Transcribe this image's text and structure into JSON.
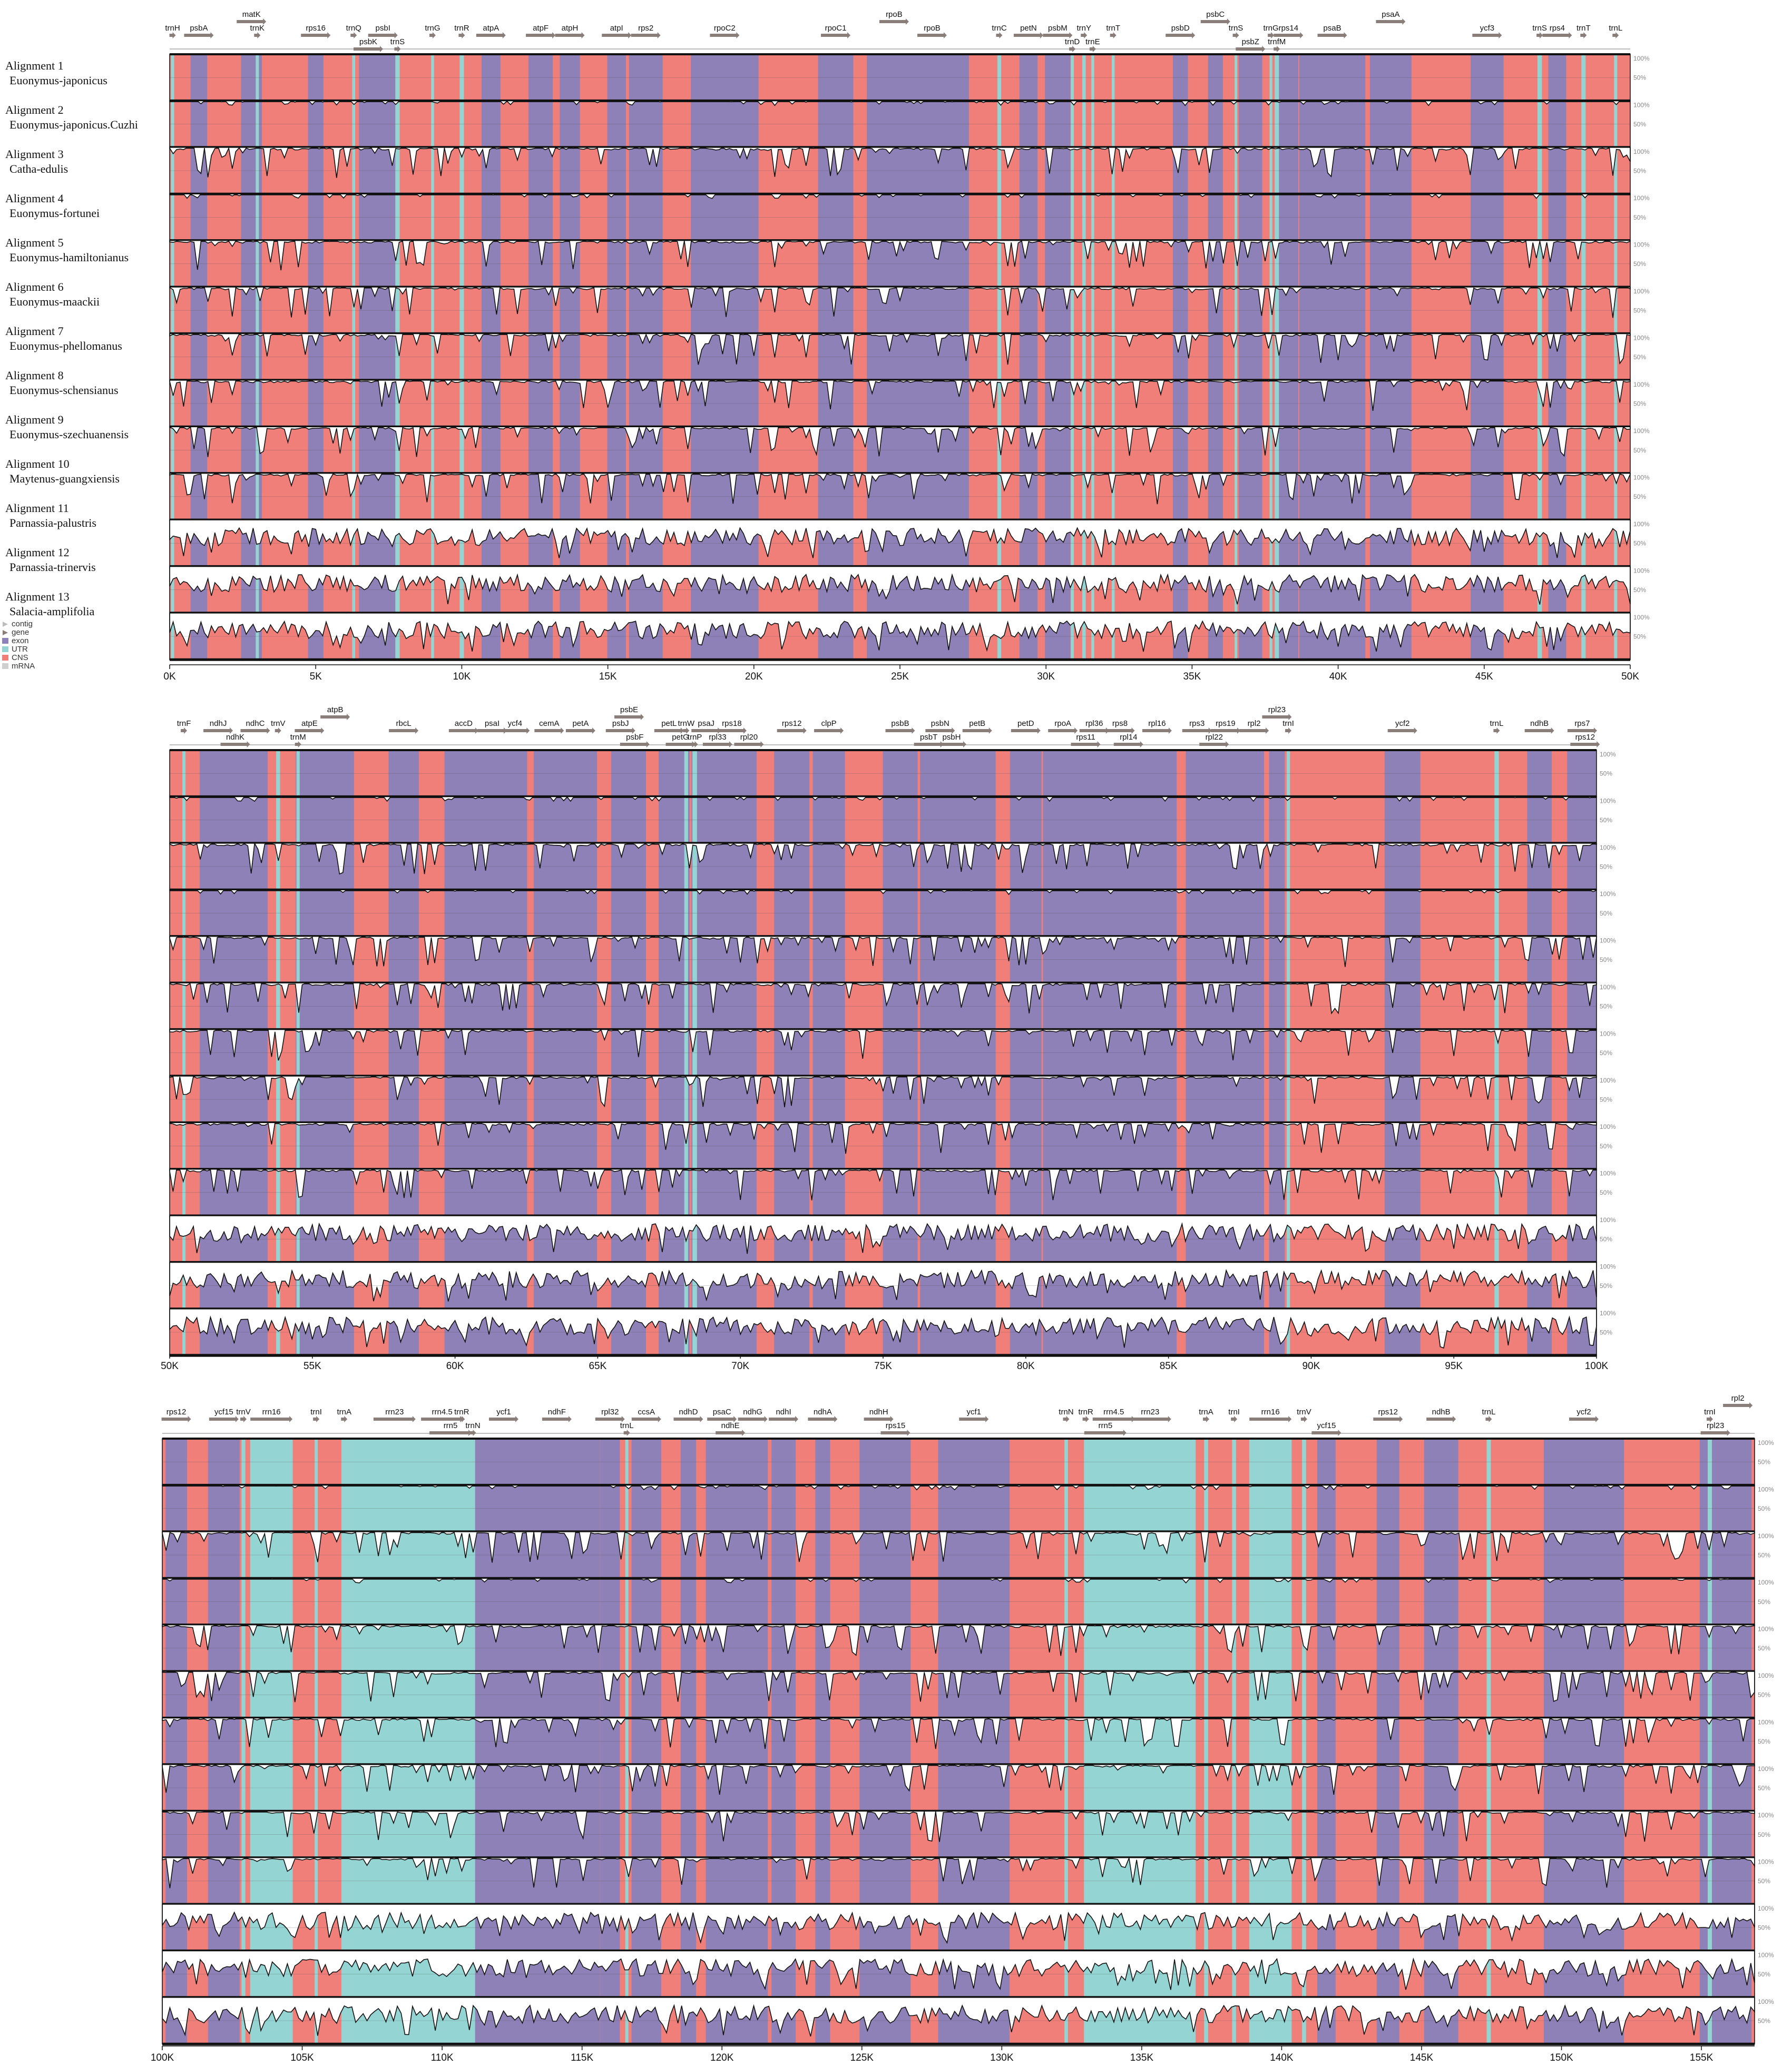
{
  "chart_data": {
    "type": "area",
    "title": "",
    "xlabel": "",
    "ylabel": "",
    "y_ticks": [
      "100%",
      "50%"
    ],
    "legend": {
      "placement": "left",
      "entries": [
        {
          "name": "contig",
          "color": "#bdbdbd",
          "marker": "arrow"
        },
        {
          "name": "gene",
          "color": "#8a7e7b",
          "marker": "arrow"
        },
        {
          "name": "exon",
          "color": "#8e81b8",
          "marker": "box"
        },
        {
          "name": "UTR",
          "color": "#94d4d2",
          "marker": "box"
        },
        {
          "name": "CNS",
          "color": "#f07f7a",
          "marker": "box"
        },
        {
          "name": "mRNA",
          "color": "#cfcfcf",
          "marker": "box"
        }
      ]
    },
    "alignments": [
      {
        "label": "Alignment 1",
        "species": "Euonymus-japonicus"
      },
      {
        "label": "Alignment 2",
        "species": "Euonymus-japonicus.Cuzhi"
      },
      {
        "label": "Alignment 3",
        "species": "Catha-edulis"
      },
      {
        "label": "Alignment 4",
        "species": "Euonymus-fortunei"
      },
      {
        "label": "Alignment 5",
        "species": "Euonymus-hamiltonianus"
      },
      {
        "label": "Alignment 6",
        "species": "Euonymus-maackii"
      },
      {
        "label": "Alignment 7",
        "species": "Euonymus-phellomanus"
      },
      {
        "label": "Alignment 8",
        "species": "Euonymus-schensianus"
      },
      {
        "label": "Alignment 9",
        "species": "Euonymus-szechuanensis"
      },
      {
        "label": "Alignment 10",
        "species": "Maytenus-guangxiensis"
      },
      {
        "label": "Alignment 11",
        "species": "Parnassia-palustris"
      },
      {
        "label": "Alignment 12",
        "species": "Parnassia-trinervis"
      },
      {
        "label": "Alignment 13",
        "species": "Salacia-amplifolia"
      }
    ],
    "panels": [
      {
        "xlim": [
          0,
          50000
        ],
        "tick_labels": [
          "0K",
          "5K",
          "10K",
          "15K",
          "20K",
          "25K",
          "30K",
          "35K",
          "40K",
          "45K",
          "50K"
        ],
        "genes": [
          {
            "name": "trnH",
            "x": 100,
            "lvl": 1,
            "t": "u"
          },
          {
            "name": "psbA",
            "x": 1000,
            "lvl": 1,
            "t": "e"
          },
          {
            "name": "matK",
            "x": 2800,
            "lvl": 0,
            "t": "e"
          },
          {
            "name": "trnK",
            "x": 3000,
            "lvl": 1,
            "t": "u"
          },
          {
            "name": "rps16",
            "x": 5000,
            "lvl": 1,
            "t": "e"
          },
          {
            "name": "trnQ",
            "x": 6300,
            "lvl": 1,
            "t": "u"
          },
          {
            "name": "psbK",
            "x": 6800,
            "lvl": 2,
            "t": "e"
          },
          {
            "name": "psbI",
            "x": 7300,
            "lvl": 1,
            "t": "e"
          },
          {
            "name": "trnS",
            "x": 7800,
            "lvl": 2,
            "t": "u"
          },
          {
            "name": "trnG",
            "x": 9000,
            "lvl": 1,
            "t": "u"
          },
          {
            "name": "trnR",
            "x": 10000,
            "lvl": 1,
            "t": "u"
          },
          {
            "name": "atpA",
            "x": 11000,
            "lvl": 1,
            "t": "e"
          },
          {
            "name": "atpF",
            "x": 12700,
            "lvl": 1,
            "t": "e"
          },
          {
            "name": "atpH",
            "x": 13700,
            "lvl": 1,
            "t": "e"
          },
          {
            "name": "atpI",
            "x": 15300,
            "lvl": 1,
            "t": "e"
          },
          {
            "name": "rps2",
            "x": 16300,
            "lvl": 1,
            "t": "e"
          },
          {
            "name": "rpoC2",
            "x": 19000,
            "lvl": 1,
            "t": "e"
          },
          {
            "name": "rpoC1",
            "x": 22800,
            "lvl": 1,
            "t": "e"
          },
          {
            "name": "rpoB",
            "x": 24800,
            "lvl": 0,
            "t": "e"
          },
          {
            "name": "rpoB",
            "x": 26100,
            "lvl": 1,
            "t": "e"
          },
          {
            "name": "trnC",
            "x": 28400,
            "lvl": 1,
            "t": "u"
          },
          {
            "name": "petN",
            "x": 29400,
            "lvl": 1,
            "t": "e"
          },
          {
            "name": "psbM",
            "x": 30400,
            "lvl": 1,
            "t": "e"
          },
          {
            "name": "trnD",
            "x": 30900,
            "lvl": 2,
            "t": "u"
          },
          {
            "name": "trnY",
            "x": 31300,
            "lvl": 1,
            "t": "u"
          },
          {
            "name": "trnE",
            "x": 31600,
            "lvl": 2,
            "t": "u"
          },
          {
            "name": "trnT",
            "x": 32300,
            "lvl": 1,
            "t": "u"
          },
          {
            "name": "psbD",
            "x": 34600,
            "lvl": 1,
            "t": "e"
          },
          {
            "name": "psbC",
            "x": 35800,
            "lvl": 0,
            "t": "e"
          },
          {
            "name": "trnS",
            "x": 36500,
            "lvl": 1,
            "t": "u"
          },
          {
            "name": "psbZ",
            "x": 37000,
            "lvl": 2,
            "t": "e"
          },
          {
            "name": "trnG",
            "x": 37700,
            "lvl": 1,
            "t": "u"
          },
          {
            "name": "trnfM",
            "x": 37900,
            "lvl": 2,
            "t": "u"
          },
          {
            "name": "rps14",
            "x": 38300,
            "lvl": 1,
            "t": "e"
          },
          {
            "name": "psaB",
            "x": 39800,
            "lvl": 1,
            "t": "e"
          },
          {
            "name": "psaA",
            "x": 41800,
            "lvl": 0,
            "t": "e"
          },
          {
            "name": "ycf3",
            "x": 45100,
            "lvl": 1,
            "t": "e"
          },
          {
            "name": "trnS",
            "x": 46900,
            "lvl": 1,
            "t": "u"
          },
          {
            "name": "rps4",
            "x": 47500,
            "lvl": 1,
            "t": "e"
          },
          {
            "name": "trnT",
            "x": 48400,
            "lvl": 1,
            "t": "u"
          },
          {
            "name": "trnL",
            "x": 49500,
            "lvl": 1,
            "t": "u"
          }
        ]
      },
      {
        "xlim": [
          50000,
          100000
        ],
        "tick_labels": [
          "50K",
          "55K",
          "60K",
          "65K",
          "70K",
          "75K",
          "80K",
          "85K",
          "90K",
          "95K",
          "100K"
        ],
        "genes": [
          {
            "name": "trnF",
            "x": 50500,
            "lvl": 1,
            "t": "u"
          },
          {
            "name": "ndhJ",
            "x": 51700,
            "lvl": 1,
            "t": "e"
          },
          {
            "name": "ndhK",
            "x": 52300,
            "lvl": 2,
            "t": "e"
          },
          {
            "name": "ndhC",
            "x": 53000,
            "lvl": 1,
            "t": "e"
          },
          {
            "name": "trnV",
            "x": 53800,
            "lvl": 1,
            "t": "u"
          },
          {
            "name": "trnM",
            "x": 54500,
            "lvl": 2,
            "t": "u"
          },
          {
            "name": "atpE",
            "x": 54900,
            "lvl": 1,
            "t": "e"
          },
          {
            "name": "atpB",
            "x": 55800,
            "lvl": 0,
            "t": "e"
          },
          {
            "name": "rbcL",
            "x": 58200,
            "lvl": 1,
            "t": "e"
          },
          {
            "name": "accD",
            "x": 60300,
            "lvl": 1,
            "t": "e"
          },
          {
            "name": "psaI",
            "x": 61300,
            "lvl": 1,
            "t": "e"
          },
          {
            "name": "ycf4",
            "x": 62100,
            "lvl": 1,
            "t": "e"
          },
          {
            "name": "cemA",
            "x": 63300,
            "lvl": 1,
            "t": "e"
          },
          {
            "name": "petA",
            "x": 64400,
            "lvl": 1,
            "t": "e"
          },
          {
            "name": "psbE",
            "x": 66100,
            "lvl": 0,
            "t": "e"
          },
          {
            "name": "psbJ",
            "x": 65800,
            "lvl": 1,
            "t": "e"
          },
          {
            "name": "psbF",
            "x": 66300,
            "lvl": 2,
            "t": "e"
          },
          {
            "name": "petL",
            "x": 67500,
            "lvl": 1,
            "t": "e"
          },
          {
            "name": "trnW",
            "x": 68100,
            "lvl": 1,
            "t": "u"
          },
          {
            "name": "petG",
            "x": 67900,
            "lvl": 2,
            "t": "e"
          },
          {
            "name": "trnP",
            "x": 68400,
            "lvl": 2,
            "t": "u"
          },
          {
            "name": "psaJ",
            "x": 68800,
            "lvl": 1,
            "t": "e"
          },
          {
            "name": "rpl33",
            "x": 69200,
            "lvl": 2,
            "t": "e"
          },
          {
            "name": "rps18",
            "x": 69700,
            "lvl": 1,
            "t": "e"
          },
          {
            "name": "rpl20",
            "x": 70300,
            "lvl": 2,
            "t": "e"
          },
          {
            "name": "rps12",
            "x": 71800,
            "lvl": 1,
            "t": "e"
          },
          {
            "name": "clpP",
            "x": 73100,
            "lvl": 1,
            "t": "e"
          },
          {
            "name": "psbB",
            "x": 75600,
            "lvl": 1,
            "t": "e"
          },
          {
            "name": "psbT",
            "x": 76600,
            "lvl": 2,
            "t": "e"
          },
          {
            "name": "psbN",
            "x": 77000,
            "lvl": 1,
            "t": "e"
          },
          {
            "name": "psbH",
            "x": 77400,
            "lvl": 2,
            "t": "e"
          },
          {
            "name": "petB",
            "x": 78300,
            "lvl": 1,
            "t": "e"
          },
          {
            "name": "petD",
            "x": 80000,
            "lvl": 1,
            "t": "e"
          },
          {
            "name": "rpoA",
            "x": 81300,
            "lvl": 1,
            "t": "e"
          },
          {
            "name": "rps11",
            "x": 82100,
            "lvl": 2,
            "t": "e"
          },
          {
            "name": "rpl36",
            "x": 82400,
            "lvl": 1,
            "t": "e"
          },
          {
            "name": "rps8",
            "x": 83300,
            "lvl": 1,
            "t": "e"
          },
          {
            "name": "rpl14",
            "x": 83600,
            "lvl": 2,
            "t": "e"
          },
          {
            "name": "rpl16",
            "x": 84600,
            "lvl": 1,
            "t": "e"
          },
          {
            "name": "rps3",
            "x": 86000,
            "lvl": 1,
            "t": "e"
          },
          {
            "name": "rpl22",
            "x": 86600,
            "lvl": 2,
            "t": "e"
          },
          {
            "name": "rps19",
            "x": 87000,
            "lvl": 1,
            "t": "e"
          },
          {
            "name": "rpl2",
            "x": 88000,
            "lvl": 1,
            "t": "e"
          },
          {
            "name": "rpl23",
            "x": 88800,
            "lvl": 0,
            "t": "e"
          },
          {
            "name": "trnI",
            "x": 89200,
            "lvl": 1,
            "t": "u"
          },
          {
            "name": "ycf2",
            "x": 93200,
            "lvl": 1,
            "t": "e"
          },
          {
            "name": "trnL",
            "x": 96500,
            "lvl": 1,
            "t": "u"
          },
          {
            "name": "ndhB",
            "x": 98000,
            "lvl": 1,
            "t": "e"
          },
          {
            "name": "rps7",
            "x": 99500,
            "lvl": 1,
            "t": "e"
          },
          {
            "name": "rps12",
            "x": 99600,
            "lvl": 2,
            "t": "e"
          }
        ]
      },
      {
        "xlim": [
          100000,
          156900
        ],
        "tick_labels": [
          "100K",
          "105K",
          "110K",
          "115K",
          "120K",
          "125K",
          "130K",
          "135K",
          "140K",
          "145K",
          "150K",
          "155K"
        ],
        "genes": [
          {
            "name": "rps12",
            "x": 100500,
            "lvl": 1,
            "t": "e"
          },
          {
            "name": "ycf15",
            "x": 102200,
            "lvl": 1,
            "t": "e"
          },
          {
            "name": "trnV",
            "x": 102900,
            "lvl": 1,
            "t": "u"
          },
          {
            "name": "rrn16",
            "x": 103900,
            "lvl": 1,
            "t": "r"
          },
          {
            "name": "trnI",
            "x": 105500,
            "lvl": 1,
            "t": "u"
          },
          {
            "name": "trnA",
            "x": 106500,
            "lvl": 1,
            "t": "u"
          },
          {
            "name": "rrn23",
            "x": 108300,
            "lvl": 1,
            "t": "r"
          },
          {
            "name": "rrn4.5",
            "x": 110000,
            "lvl": 1,
            "t": "r"
          },
          {
            "name": "rrn5",
            "x": 110300,
            "lvl": 2,
            "t": "r"
          },
          {
            "name": "trnR",
            "x": 110700,
            "lvl": 1,
            "t": "u"
          },
          {
            "name": "trnN",
            "x": 111100,
            "lvl": 2,
            "t": "u"
          },
          {
            "name": "ycf1",
            "x": 112200,
            "lvl": 1,
            "t": "e"
          },
          {
            "name": "ndhF",
            "x": 114100,
            "lvl": 1,
            "t": "e"
          },
          {
            "name": "rpl32",
            "x": 116000,
            "lvl": 1,
            "t": "e"
          },
          {
            "name": "trnL",
            "x": 116600,
            "lvl": 2,
            "t": "u"
          },
          {
            "name": "ccsA",
            "x": 117300,
            "lvl": 1,
            "t": "e"
          },
          {
            "name": "ndhD",
            "x": 118800,
            "lvl": 1,
            "t": "e"
          },
          {
            "name": "psaC",
            "x": 120000,
            "lvl": 1,
            "t": "e"
          },
          {
            "name": "ndhE",
            "x": 120300,
            "lvl": 2,
            "t": "e"
          },
          {
            "name": "ndhG",
            "x": 121100,
            "lvl": 1,
            "t": "e"
          },
          {
            "name": "ndhI",
            "x": 122200,
            "lvl": 1,
            "t": "e"
          },
          {
            "name": "ndhA",
            "x": 123600,
            "lvl": 1,
            "t": "e"
          },
          {
            "name": "ndhH",
            "x": 125600,
            "lvl": 1,
            "t": "e"
          },
          {
            "name": "rps15",
            "x": 126200,
            "lvl": 2,
            "t": "e"
          },
          {
            "name": "ycf1",
            "x": 129000,
            "lvl": 1,
            "t": "e"
          },
          {
            "name": "trnN",
            "x": 132300,
            "lvl": 1,
            "t": "u"
          },
          {
            "name": "trnR",
            "x": 133000,
            "lvl": 1,
            "t": "u"
          },
          {
            "name": "rrn5",
            "x": 133700,
            "lvl": 2,
            "t": "r"
          },
          {
            "name": "rrn4.5",
            "x": 134000,
            "lvl": 1,
            "t": "r"
          },
          {
            "name": "rrn23",
            "x": 135300,
            "lvl": 1,
            "t": "r"
          },
          {
            "name": "trnA",
            "x": 137300,
            "lvl": 1,
            "t": "u"
          },
          {
            "name": "trnI",
            "x": 138300,
            "lvl": 1,
            "t": "u"
          },
          {
            "name": "rrn16",
            "x": 139600,
            "lvl": 1,
            "t": "r"
          },
          {
            "name": "trnV",
            "x": 140800,
            "lvl": 1,
            "t": "u"
          },
          {
            "name": "ycf15",
            "x": 141600,
            "lvl": 2,
            "t": "e"
          },
          {
            "name": "rps12",
            "x": 143800,
            "lvl": 1,
            "t": "e"
          },
          {
            "name": "ndhB",
            "x": 145700,
            "lvl": 1,
            "t": "e"
          },
          {
            "name": "trnL",
            "x": 147400,
            "lvl": 1,
            "t": "u"
          },
          {
            "name": "ycf2",
            "x": 150800,
            "lvl": 1,
            "t": "e"
          },
          {
            "name": "trnI",
            "x": 155300,
            "lvl": 1,
            "t": "u"
          },
          {
            "name": "rpl23",
            "x": 155500,
            "lvl": 2,
            "t": "e"
          },
          {
            "name": "rpl2",
            "x": 156300,
            "lvl": 0,
            "t": "e"
          }
        ]
      }
    ]
  }
}
